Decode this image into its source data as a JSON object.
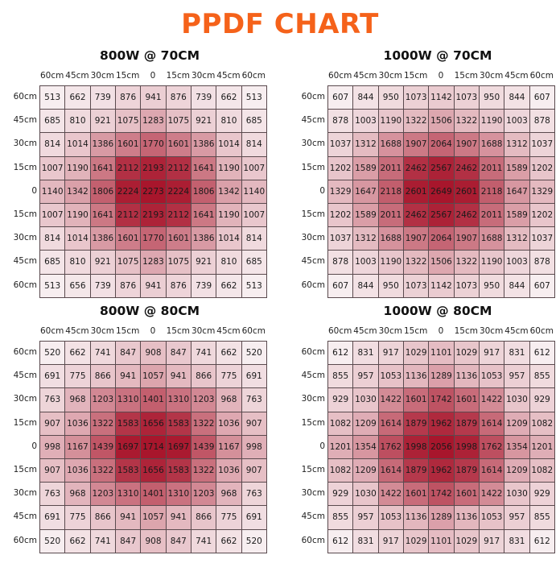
{
  "title": "PPDF CHART",
  "colors": {
    "title": "#f5621a",
    "low": "#f7eef0",
    "high": "#a8162c"
  },
  "col_labels": [
    "60cm",
    "45cm",
    "30cm",
    "15cm",
    "0",
    "15cm",
    "30cm",
    "45cm",
    "60cm"
  ],
  "row_labels": [
    "60cm",
    "45cm",
    "30cm",
    "15cm",
    "0",
    "15cm",
    "30cm",
    "45cm",
    "60cm"
  ],
  "chart_data": [
    {
      "type": "heatmap",
      "title": "800W @ 70CM",
      "values": [
        [
          513,
          662,
          739,
          876,
          941,
          876,
          739,
          662,
          513
        ],
        [
          685,
          810,
          921,
          1075,
          1283,
          1075,
          921,
          810,
          685
        ],
        [
          814,
          1014,
          1386,
          1601,
          1770,
          1601,
          1386,
          1014,
          814
        ],
        [
          1007,
          1190,
          1641,
          2112,
          2193,
          2112,
          1641,
          1190,
          1007
        ],
        [
          1140,
          1342,
          1806,
          2224,
          2273,
          2224,
          1806,
          1342,
          1140
        ],
        [
          1007,
          1190,
          1641,
          2112,
          2193,
          2112,
          1641,
          1190,
          1007
        ],
        [
          814,
          1014,
          1386,
          1601,
          1770,
          1601,
          1386,
          1014,
          814
        ],
        [
          685,
          810,
          921,
          1075,
          1283,
          1075,
          921,
          810,
          685
        ],
        [
          513,
          656,
          739,
          876,
          941,
          876,
          739,
          662,
          513
        ]
      ]
    },
    {
      "type": "heatmap",
      "title": "1000W @ 70CM",
      "values": [
        [
          607,
          844,
          950,
          1073,
          1142,
          1073,
          950,
          844,
          607
        ],
        [
          878,
          1003,
          1190,
          1322,
          1506,
          1322,
          1190,
          1003,
          878
        ],
        [
          1037,
          1312,
          1688,
          1907,
          2064,
          1907,
          1688,
          1312,
          1037
        ],
        [
          1202,
          1589,
          2011,
          2462,
          2567,
          2462,
          2011,
          1589,
          1202
        ],
        [
          1329,
          1647,
          2118,
          2601,
          2649,
          2601,
          2118,
          1647,
          1329
        ],
        [
          1202,
          1589,
          2011,
          2462,
          2567,
          2462,
          2011,
          1589,
          1202
        ],
        [
          1037,
          1312,
          1688,
          1907,
          2064,
          1907,
          1688,
          1312,
          1037
        ],
        [
          878,
          1003,
          1190,
          1322,
          1506,
          1322,
          1190,
          1003,
          878
        ],
        [
          607,
          844,
          950,
          1073,
          1142,
          1073,
          950,
          844,
          607
        ]
      ]
    },
    {
      "type": "heatmap",
      "title": "800W @ 80CM",
      "values": [
        [
          520,
          662,
          741,
          847,
          908,
          847,
          741,
          662,
          520
        ],
        [
          691,
          775,
          866,
          941,
          1057,
          941,
          866,
          775,
          691
        ],
        [
          763,
          968,
          1203,
          1310,
          1401,
          1310,
          1203,
          968,
          763
        ],
        [
          907,
          1036,
          1322,
          1583,
          1656,
          1583,
          1322,
          1036,
          907
        ],
        [
          998,
          1167,
          1439,
          1697,
          1714,
          1697,
          1439,
          1167,
          998
        ],
        [
          907,
          1036,
          1322,
          1583,
          1656,
          1583,
          1322,
          1036,
          907
        ],
        [
          763,
          968,
          1203,
          1310,
          1401,
          1310,
          1203,
          968,
          763
        ],
        [
          691,
          775,
          866,
          941,
          1057,
          941,
          866,
          775,
          691
        ],
        [
          520,
          662,
          741,
          847,
          908,
          847,
          741,
          662,
          520
        ]
      ]
    },
    {
      "type": "heatmap",
      "title": "1000W @ 80CM",
      "values": [
        [
          612,
          831,
          917,
          1029,
          1101,
          1029,
          917,
          831,
          612
        ],
        [
          855,
          957,
          1053,
          1136,
          1289,
          1136,
          1053,
          957,
          855
        ],
        [
          929,
          1030,
          1422,
          1601,
          1742,
          1601,
          1422,
          1030,
          929
        ],
        [
          1082,
          1209,
          1614,
          1879,
          1962,
          1879,
          1614,
          1209,
          1082
        ],
        [
          1201,
          1354,
          1762,
          1998,
          2056,
          1998,
          1762,
          1354,
          1201
        ],
        [
          1082,
          1209,
          1614,
          1879,
          1962,
          1879,
          1614,
          1209,
          1082
        ],
        [
          929,
          1030,
          1422,
          1601,
          1742,
          1601,
          1422,
          1030,
          929
        ],
        [
          855,
          957,
          1053,
          1136,
          1289,
          1136,
          1053,
          957,
          855
        ],
        [
          612,
          831,
          917,
          1029,
          1101,
          1029,
          917,
          831,
          612
        ]
      ]
    }
  ]
}
